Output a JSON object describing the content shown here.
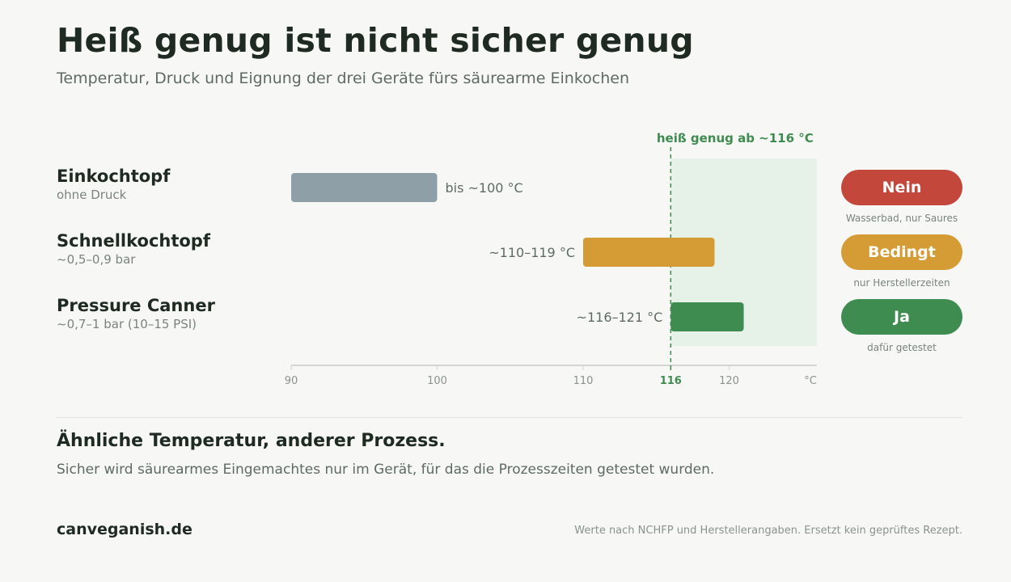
{
  "title": "Heiß genug ist nicht sicher genug",
  "subtitle": "Temperatur, Druck und Eignung der drei Geräte fürs säurearme Einkochen",
  "colors": {
    "grey": "#8e9fa7",
    "amber": "#d59b34",
    "green": "#3f8c50",
    "red": "#c3473b",
    "zone": "#e6f1e7",
    "axis": "#d3d6d2",
    "text": "#1e2a22",
    "muted": "#5e6b62"
  },
  "chart_data": {
    "type": "bar",
    "orientation": "horizontal-range",
    "xlim": [
      90,
      126
    ],
    "xticks": [
      "90",
      "100",
      "110",
      "116",
      "120"
    ],
    "x_unit_label": "°C",
    "threshold": {
      "value": 116,
      "label": "heiß genug ab ~116 °C",
      "tick_label": "116"
    },
    "safe_zone": [
      116,
      126
    ],
    "series": [
      {
        "name": "Einkochtopf",
        "sub": "ohne Druck",
        "start": 90,
        "end": 100,
        "value_label": "bis ~100 °C",
        "label_side": "right",
        "color": "#8e9fa7",
        "verdict": "Nein",
        "verdict_color": "#c3473b",
        "note": "Wasserbad, nur Saures"
      },
      {
        "name": "Schnellkochtopf",
        "sub": "~0,5–0,9 bar",
        "start": 110,
        "end": 119,
        "value_label": "~110–119 °C",
        "label_side": "left",
        "color": "#d59b34",
        "verdict": "Bedingt",
        "verdict_color": "#d59b34",
        "note": "nur Herstellerzeiten"
      },
      {
        "name": "Pressure Canner",
        "sub": "~0,7–1 bar (10–15 PSI)",
        "start": 116,
        "end": 121,
        "value_label": "~116–121 °C",
        "label_side": "left",
        "color": "#3f8c50",
        "verdict": "Ja",
        "verdict_color": "#3f8c50",
        "note": "dafür getestet"
      }
    ]
  },
  "section": {
    "heading": "Ähnliche Temperatur, anderer Prozess.",
    "text": "Sicher wird säurearmes Eingemachtes nur im Gerät, für das die Prozesszeiten getestet wurden."
  },
  "footer": {
    "brand": "canveganish.de",
    "note": "Werte nach NCHFP und Herstellerangaben. Ersetzt kein geprüftes Rezept."
  }
}
